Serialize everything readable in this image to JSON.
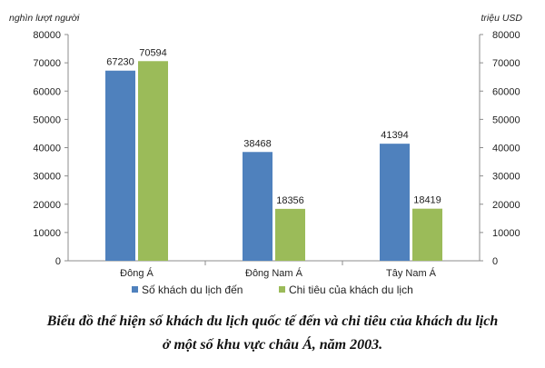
{
  "chart_data": {
    "type": "bar",
    "categories": [
      "Đông Á",
      "Đông Nam Á",
      "Tây Nam Á"
    ],
    "series": [
      {
        "name": "Số khách du lịch đến",
        "axis": "left",
        "color": "#4f81bd",
        "values": [
          67230,
          38468,
          41394
        ]
      },
      {
        "name": "Chi tiêu của khách du lịch",
        "axis": "right",
        "color": "#9bbb59",
        "values": [
          70594,
          18356,
          18419
        ]
      }
    ],
    "ylabel_left": "nghìn lượt người",
    "ylabel_right": "triệu USD",
    "ylim": [
      0,
      80000
    ],
    "yticks": [
      "80000",
      "70000",
      "60000",
      "50000",
      "40000",
      "30000",
      "20000",
      "10000",
      "0"
    ],
    "legend_position": "bottom",
    "grid": false
  },
  "caption": {
    "line1": "Biểu đồ thể hiện số khách du lịch quốc tế đến và chi tiêu của khách du lịch",
    "line2": "ở một số khu vực châu Á, năm 2003."
  }
}
